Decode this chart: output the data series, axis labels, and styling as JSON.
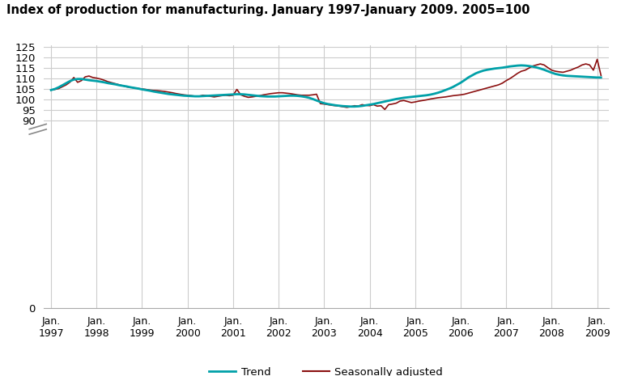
{
  "title": "Index of production for manufacturing. January 1997-January 2009. 2005=100",
  "background_color": "#ffffff",
  "grid_color": "#cccccc",
  "trend_color": "#00a0a8",
  "seasonal_color": "#8b1010",
  "trend_linewidth": 2.0,
  "seasonal_linewidth": 1.2,
  "legend_trend": "Trend",
  "legend_seasonal": "Seasonally adjusted",
  "x_labels": [
    "Jan.\n1997",
    "Jan.\n1998",
    "Jan.\n1999",
    "Jan.\n2000",
    "Jan.\n2001",
    "Jan.\n2002",
    "Jan.\n2003",
    "Jan.\n2004",
    "Jan.\n2005",
    "Jan.\n2006",
    "Jan.\n2007",
    "Jan.\n2008",
    "Jan.\n2009"
  ],
  "seasonal_adjusted": [
    104.5,
    104.8,
    105.2,
    106.1,
    107.0,
    108.3,
    110.5,
    108.2,
    109.0,
    110.8,
    111.2,
    110.5,
    110.2,
    109.8,
    109.2,
    108.5,
    108.0,
    107.5,
    107.0,
    106.5,
    106.0,
    105.8,
    105.5,
    105.2,
    105.0,
    104.8,
    104.5,
    104.3,
    104.2,
    104.0,
    103.8,
    103.5,
    103.2,
    102.8,
    102.5,
    102.2,
    102.0,
    101.8,
    101.5,
    101.5,
    102.0,
    101.8,
    101.5,
    101.2,
    101.5,
    101.8,
    102.0,
    101.8,
    102.0,
    104.8,
    102.2,
    101.5,
    101.0,
    101.2,
    101.5,
    101.8,
    102.2,
    102.5,
    102.8,
    103.0,
    103.2,
    103.2,
    103.0,
    102.8,
    102.5,
    102.2,
    102.0,
    102.0,
    102.0,
    102.2,
    102.5,
    98.0,
    97.8,
    97.5,
    97.2,
    97.0,
    96.8,
    96.5,
    96.2,
    96.5,
    97.0,
    96.8,
    97.5,
    97.2,
    97.0,
    97.5,
    96.8,
    97.0,
    95.2,
    97.5,
    97.8,
    98.2,
    99.2,
    99.5,
    99.0,
    98.5,
    98.8,
    99.2,
    99.5,
    99.8,
    100.2,
    100.5,
    100.8,
    101.0,
    101.2,
    101.5,
    101.8,
    102.0,
    102.2,
    102.5,
    103.0,
    103.5,
    104.0,
    104.5,
    105.0,
    105.5,
    106.0,
    106.5,
    107.0,
    107.8,
    109.0,
    110.0,
    111.2,
    112.5,
    113.5,
    114.0,
    115.0,
    116.0,
    116.5,
    117.0,
    116.5,
    115.2,
    114.0,
    113.5,
    113.2,
    113.0,
    113.5,
    114.0,
    114.8,
    115.5,
    116.5,
    117.0,
    116.5,
    114.0,
    119.2,
    111.5
  ],
  "trend": [
    104.5,
    105.0,
    105.8,
    106.8,
    107.8,
    108.8,
    109.5,
    109.8,
    109.8,
    109.5,
    109.2,
    109.0,
    108.8,
    108.5,
    108.2,
    107.8,
    107.5,
    107.2,
    106.8,
    106.5,
    106.2,
    105.8,
    105.5,
    105.2,
    104.8,
    104.5,
    104.2,
    103.8,
    103.5,
    103.2,
    102.9,
    102.6,
    102.4,
    102.2,
    102.0,
    101.8,
    101.7,
    101.6,
    101.5,
    101.5,
    101.6,
    101.7,
    101.8,
    101.9,
    102.0,
    102.1,
    102.2,
    102.3,
    102.4,
    102.5,
    102.5,
    102.4,
    102.2,
    102.0,
    101.8,
    101.6,
    101.5,
    101.4,
    101.4,
    101.4,
    101.5,
    101.6,
    101.7,
    101.8,
    101.8,
    101.7,
    101.5,
    101.2,
    100.8,
    100.2,
    99.5,
    98.8,
    98.2,
    97.8,
    97.5,
    97.2,
    97.0,
    96.8,
    96.7,
    96.6,
    96.6,
    96.7,
    96.9,
    97.2,
    97.5,
    97.8,
    98.2,
    98.6,
    99.0,
    99.4,
    99.8,
    100.2,
    100.5,
    100.8,
    101.0,
    101.2,
    101.4,
    101.6,
    101.8,
    102.0,
    102.3,
    102.7,
    103.2,
    103.8,
    104.5,
    105.2,
    106.0,
    107.0,
    108.0,
    109.2,
    110.5,
    111.5,
    112.5,
    113.2,
    113.8,
    114.2,
    114.5,
    114.8,
    115.0,
    115.2,
    115.5,
    115.8,
    116.0,
    116.2,
    116.3,
    116.2,
    116.0,
    115.7,
    115.3,
    114.8,
    114.2,
    113.5,
    112.8,
    112.2,
    111.8,
    111.5,
    111.3,
    111.2,
    111.1,
    111.0,
    110.9,
    110.8,
    110.7,
    110.6,
    110.5,
    110.5
  ]
}
